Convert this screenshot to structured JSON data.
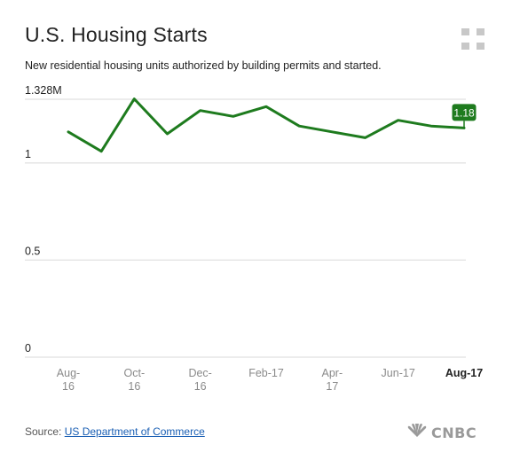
{
  "title": "U.S. Housing Starts",
  "subtitle": "New residential housing units authorized by building permits and started.",
  "source": {
    "prefix": "Source: ",
    "link_text": "US Department of Commerce"
  },
  "logo_text": "CNBC",
  "icons": {
    "expand": "expand-icon",
    "logo": "peacock-icon"
  },
  "colors": {
    "line": "#1e7b1e",
    "grid": "#d9d9d9",
    "axis_text": "#222222",
    "tick_text": "#8a8a8a",
    "last_tick_text": "#222222"
  },
  "chart_data": {
    "type": "line",
    "title": "U.S. Housing Starts",
    "ylim": [
      0,
      1.328
    ],
    "y_ticks": [
      {
        "value": 0,
        "label": "0"
      },
      {
        "value": 0.5,
        "label": "0.5"
      },
      {
        "value": 1,
        "label": "1"
      },
      {
        "value": 1.328,
        "label": "1.328M"
      }
    ],
    "x_tick_labels": [
      {
        "label": "Aug-16",
        "lines": [
          "Aug-",
          "16"
        ],
        "emphasis": false
      },
      {
        "label": "Oct-16",
        "lines": [
          "Oct-",
          "16"
        ],
        "emphasis": false
      },
      {
        "label": "Dec-16",
        "lines": [
          "Dec-",
          "16"
        ],
        "emphasis": false
      },
      {
        "label": "Feb-17",
        "lines": [
          "Feb-17"
        ],
        "emphasis": false
      },
      {
        "label": "Apr-17",
        "lines": [
          "Apr-",
          "17"
        ],
        "emphasis": false
      },
      {
        "label": "Jun-17",
        "lines": [
          "Jun-17"
        ],
        "emphasis": false
      },
      {
        "label": "Aug-17",
        "lines": [
          "Aug-17"
        ],
        "emphasis": true
      }
    ],
    "x": [
      "Aug-16",
      "Sep-16",
      "Oct-16",
      "Nov-16",
      "Dec-16",
      "Jan-17",
      "Feb-17",
      "Mar-17",
      "Apr-17",
      "May-17",
      "Jun-17",
      "Jul-17",
      "Aug-17"
    ],
    "series": [
      {
        "values": [
          1.16,
          1.06,
          1.33,
          1.15,
          1.27,
          1.24,
          1.29,
          1.19,
          1.16,
          1.13,
          1.22,
          1.19,
          1.18
        ]
      }
    ],
    "last_value_label": "1.18",
    "grid": true
  }
}
